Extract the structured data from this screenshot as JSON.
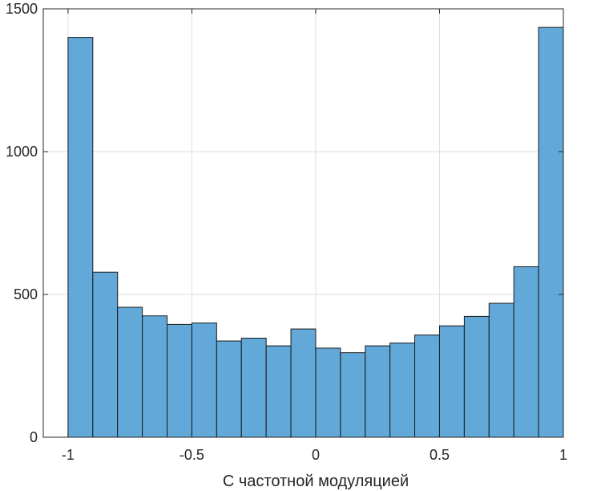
{
  "chart_data": {
    "type": "bar",
    "title": "",
    "xlabel": "С частотной модуляцией",
    "ylabel": "",
    "xlim": [
      -1.1,
      1.0
    ],
    "ylim": [
      0,
      1500
    ],
    "grid": true,
    "bin_edges": [
      -1.0,
      -0.9,
      -0.8,
      -0.7,
      -0.6,
      -0.5,
      -0.4,
      -0.3,
      -0.2,
      -0.1,
      0.0,
      0.1,
      0.2,
      0.3,
      0.4,
      0.5,
      0.6,
      0.7,
      0.8,
      0.9,
      1.0
    ],
    "values": [
      1400,
      578,
      455,
      425,
      395,
      400,
      337,
      347,
      320,
      379,
      312,
      296,
      320,
      330,
      358,
      390,
      423,
      469,
      597,
      1435
    ],
    "xticks": [
      -1,
      -0.5,
      0,
      0.5,
      1
    ],
    "xtick_labels": [
      "-1",
      "-0.5",
      "0",
      "0.5",
      "1"
    ],
    "yticks": [
      0,
      500,
      1000,
      1500
    ],
    "ytick_labels": [
      "0",
      "500",
      "1000",
      "1500"
    ],
    "colors": {
      "bar_fill": "#62a8d8",
      "bar_edge": "#1a1a1a",
      "axis": "#262626",
      "grid": "#dddddd"
    }
  }
}
